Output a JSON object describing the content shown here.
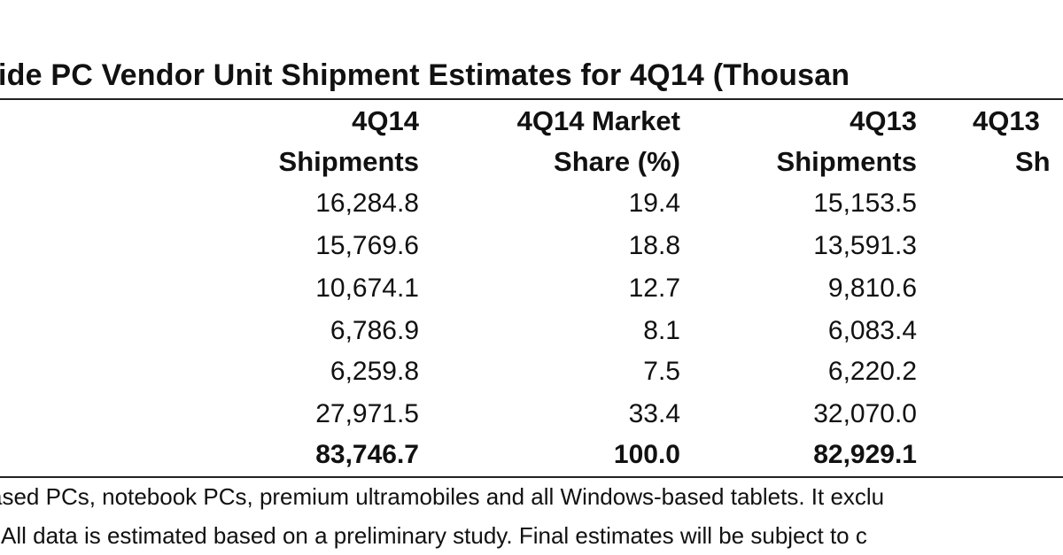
{
  "table": {
    "title": "ide PC Vendor Unit Shipment Estimates for 4Q14 (Thousan",
    "columns": [
      {
        "line1": "4Q14",
        "line2": "Shipments"
      },
      {
        "line1": "4Q14 Market",
        "line2": "Share  (%)"
      },
      {
        "line1": "4Q13",
        "line2": "Shipments"
      },
      {
        "line1": "4Q13",
        "line2": "Sh"
      }
    ],
    "rows": [
      {
        "q14_shipments": "16,284.8",
        "q14_share": "19.4",
        "q13_shipments": "15,153.5",
        "bold": false
      },
      {
        "q14_shipments": "15,769.6",
        "q14_share": "18.8",
        "q13_shipments": "13,591.3",
        "bold": false
      },
      {
        "q14_shipments": "10,674.1",
        "q14_share": "12.7",
        "q13_shipments": "9,810.6",
        "bold": false
      },
      {
        "q14_shipments": "6,786.9",
        "q14_share": "8.1",
        "q13_shipments": "6,083.4",
        "bold": false
      },
      {
        "q14_shipments": "6,259.8",
        "q14_share": "7.5",
        "q13_shipments": "6,220.2",
        "bold": false
      },
      {
        "q14_shipments": "27,971.5",
        "q14_share": "33.4",
        "q13_shipments": "32,070.0",
        "bold": false
      },
      {
        "q14_shipments": "83,746.7",
        "q14_share": "100.0",
        "q13_shipments": "82,929.1",
        "bold": true
      }
    ]
  },
  "notes": {
    "line1": "ased PCs, notebook PCs, premium ultramobiles and all Windows-based  tablets. It exclu",
    "line2": ". All data is estimated based on a preliminary study.  Final estimates will be subject to c"
  },
  "colors": {
    "text": "#111111",
    "rule": "#222222",
    "background": "#ffffff"
  }
}
